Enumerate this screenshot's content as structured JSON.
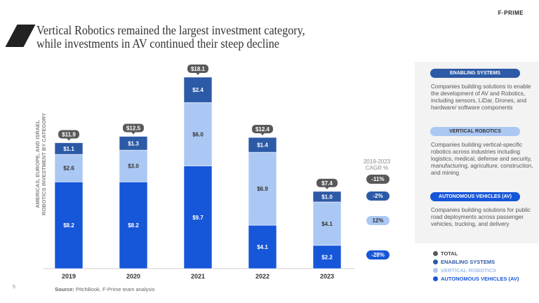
{
  "brand": "F·PRIME",
  "title_line1": "Vertical Robotics remained the largest investment category,",
  "title_line2": "while investments in AV continued their steep decline",
  "page_number": "5",
  "source_label": "Source:",
  "source_text": " PitchBook, F-Prime team analysis",
  "colors": {
    "av": "#1656d9",
    "vr": "#abc8f4",
    "es": "#2d5aa7",
    "total": "#595959"
  },
  "chart_data": {
    "type": "bar",
    "stacked": true,
    "ylabel": "AMERICAS, EUROPE, AND ISRAEL ROBOTICS INVESTMENT BY CATEGORY",
    "ylabel_line1": "AMERICAS, EUROPE, AND ISRAEL",
    "ylabel_line2": "ROBOTICS INVESTMENT BY CATEGORY",
    "categories": [
      "2019",
      "2020",
      "2021",
      "2022",
      "2023"
    ],
    "series": [
      {
        "name": "AUTONOMOUS VEHICLES (AV)",
        "values": [
          8.2,
          8.2,
          9.7,
          4.1,
          2.2
        ],
        "labels": [
          "$8.2",
          "$8.2",
          "$9.7",
          "$4.1",
          "$2.2"
        ]
      },
      {
        "name": "VERTICAL ROBOTICS",
        "values": [
          2.6,
          3.0,
          6.0,
          6.9,
          4.1
        ],
        "labels": [
          "$2.6",
          "$3.0",
          "$6.0",
          "$6.9",
          "$4.1"
        ]
      },
      {
        "name": "ENABLING SYSTEMS",
        "values": [
          1.1,
          1.3,
          2.4,
          1.4,
          1.0
        ],
        "labels": [
          "$1.1",
          "$1.3",
          "$2.4",
          "$1.4",
          "$1.0"
        ]
      }
    ],
    "totals": [
      11.9,
      12.5,
      18.1,
      12.4,
      7.4
    ],
    "total_labels": [
      "$11.9",
      "$12.5",
      "$18.1",
      "$12.4",
      "$7.4"
    ],
    "ylim": [
      0,
      18.1
    ],
    "grid": false
  },
  "cagr": {
    "header1": "2019-2023",
    "header2": "CAGR %",
    "values": [
      "-11%",
      "-2%",
      "12%",
      "-28%"
    ]
  },
  "panel": [
    {
      "label": "ENABLING SYSTEMS",
      "desc": "Companies building solutions to enable the development of AV and Robotics, including sensors, LiDar, Drones, and hardware/ software components"
    },
    {
      "label": "VERTICAL ROBOTICS",
      "desc": "Companies building vertical-specific robotics across industries including logistics, medical, defense and security, manufacturing, agriculture, construction, and mining"
    },
    {
      "label": "AUTONOMOUS VEHICLES (AV)",
      "desc": "Companies building solutions for public road deployments across passenger vehicles, trucking, and delivery"
    }
  ],
  "legend": [
    "TOTAL",
    "ENABLING SYSTEMS",
    "VERTICAL ROBOTICS",
    "AUTONOMOUS VEHICLES (AV)"
  ]
}
